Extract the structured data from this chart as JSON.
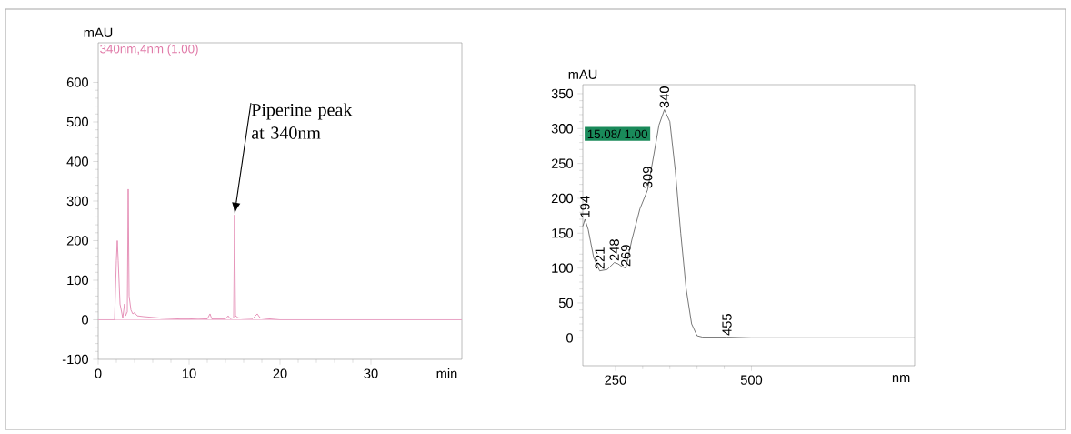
{
  "chart_data": [
    {
      "type": "line",
      "xlabel": "min",
      "ylabel": "mAU",
      "color": "#e07aa8",
      "x": [
        0,
        1.8,
        2.0,
        2.1,
        2.2,
        2.4,
        2.7,
        2.9,
        3.0,
        3.2,
        3.3,
        3.4,
        3.6,
        3.8,
        4.0,
        4.3,
        5,
        6,
        7,
        8,
        9,
        10,
        11,
        12,
        12.3,
        12.5,
        14,
        14.3,
        14.5,
        14.9,
        15.0,
        15.1,
        15.4,
        16,
        17,
        17.5,
        17.8,
        18.5,
        19.5,
        20,
        40
      ],
      "values": [
        0,
        0,
        150,
        200,
        150,
        40,
        5,
        40,
        10,
        20,
        330,
        60,
        25,
        15,
        18,
        10,
        8,
        6,
        4,
        3,
        2,
        2,
        3,
        2,
        15,
        2,
        2,
        10,
        3,
        5,
        265,
        10,
        5,
        4,
        3,
        15,
        5,
        3,
        1,
        0,
        0
      ],
      "xlim": [
        0,
        40
      ],
      "ylim": [
        -100,
        700
      ],
      "xticks": [
        0,
        10,
        20,
        30
      ],
      "yticks": [
        -100,
        0,
        100,
        200,
        300,
        400,
        500,
        600
      ],
      "ref_lines": [
        {
          "axis": "y",
          "value": 0,
          "color": "#ecafcb"
        }
      ],
      "annotations": [
        "340nm,4nm (1.00)",
        "Piperine peak at 340nm"
      ]
    },
    {
      "type": "line",
      "xlabel": "nm",
      "ylabel": "mAU",
      "color": "#555555",
      "x": [
        190,
        194,
        200,
        210,
        221,
        235,
        248,
        255,
        262,
        269,
        280,
        295,
        309,
        320,
        330,
        340,
        350,
        360,
        370,
        380,
        390,
        400,
        410,
        455,
        500,
        800
      ],
      "values": [
        160,
        170,
        155,
        115,
        96,
        98,
        108,
        106,
        102,
        100,
        140,
        185,
        212,
        260,
        305,
        327,
        310,
        240,
        150,
        70,
        20,
        3,
        1,
        1,
        0,
        0
      ],
      "xlim": [
        190,
        800
      ],
      "ylim": [
        -40,
        363
      ],
      "xticks": [
        250,
        500
      ],
      "yticks": [
        0,
        50,
        100,
        150,
        200,
        250,
        300,
        350
      ],
      "annotations": [
        "15.08/ 1.00",
        {
          "text": "194",
          "x": 194,
          "y": 170
        },
        {
          "text": "221",
          "x": 221,
          "y": 96
        },
        {
          "text": "248",
          "x": 248,
          "y": 108
        },
        {
          "text": "269",
          "x": 269,
          "y": 100
        },
        {
          "text": "309",
          "x": 309,
          "y": 212
        },
        {
          "text": "340",
          "x": 340,
          "y": 327
        },
        {
          "text": "455",
          "x": 455,
          "y": 1
        }
      ]
    }
  ]
}
